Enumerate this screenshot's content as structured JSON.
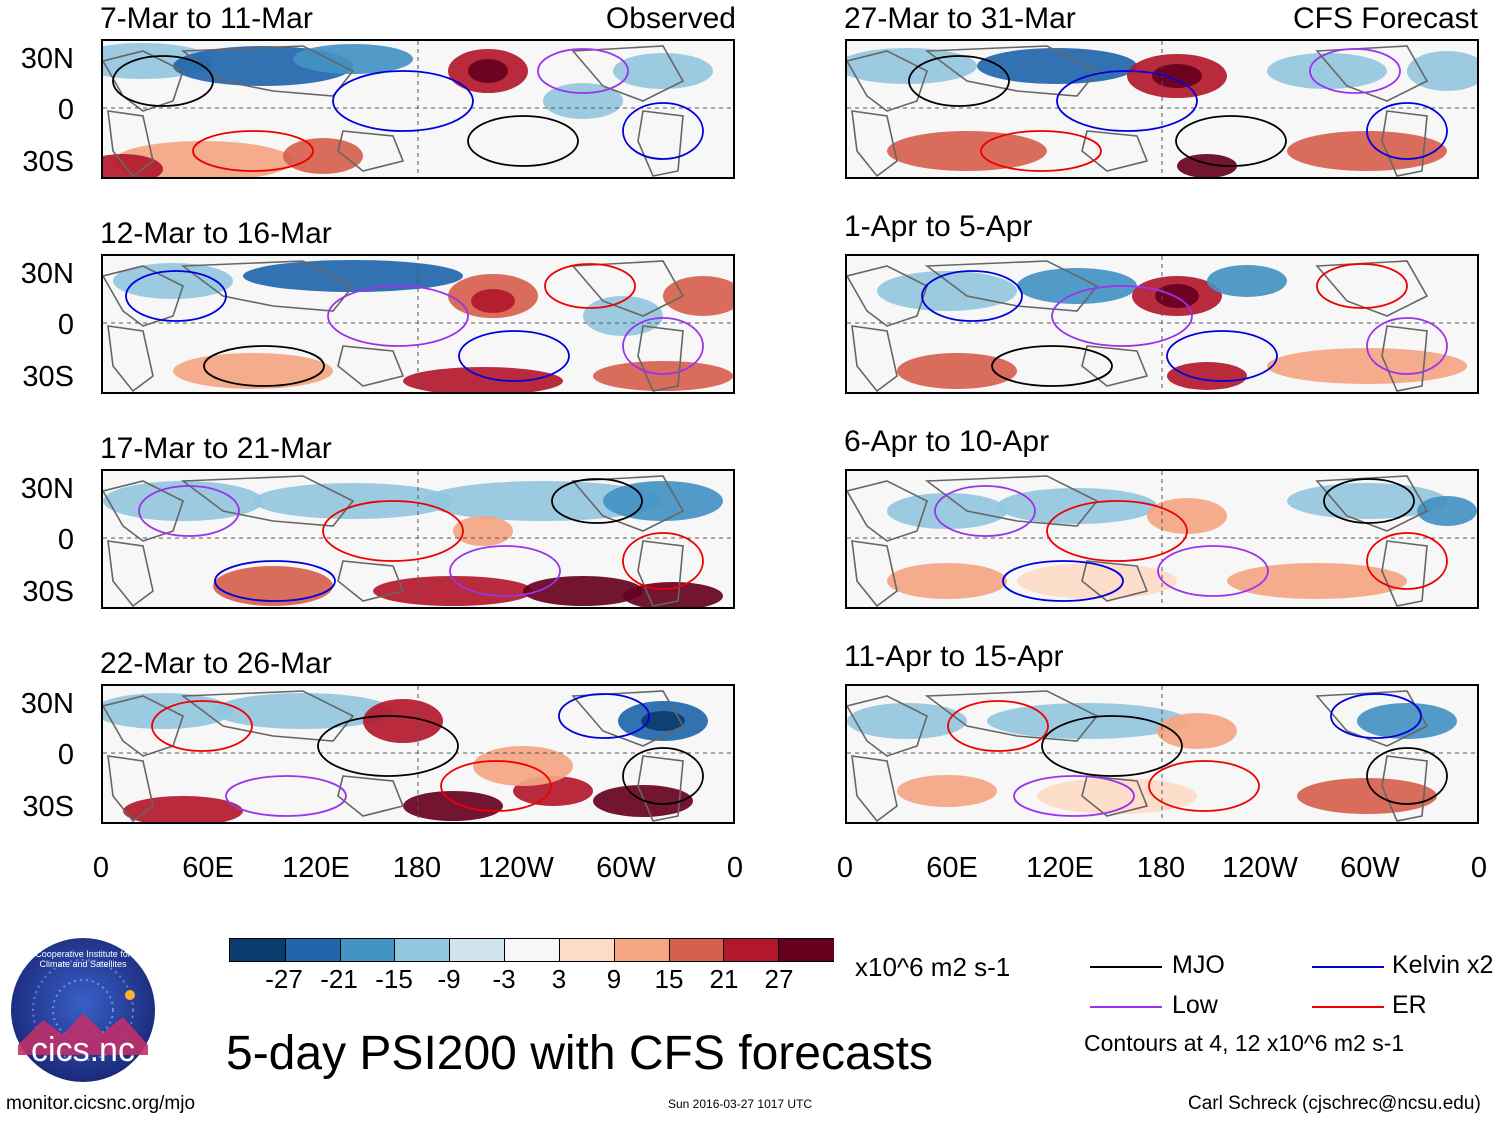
{
  "header": {
    "left_label": "Observed",
    "right_label": "CFS Forecast"
  },
  "panels_left": [
    {
      "title": "7-Mar to 11-Mar"
    },
    {
      "title": "12-Mar to 16-Mar"
    },
    {
      "title": "17-Mar to 21-Mar"
    },
    {
      "title": "22-Mar to 26-Mar"
    }
  ],
  "panels_right": [
    {
      "title": "27-Mar to 31-Mar"
    },
    {
      "title": "1-Apr to 5-Apr"
    },
    {
      "title": "6-Apr to 10-Apr"
    },
    {
      "title": "11-Apr to 15-Apr"
    }
  ],
  "lat_labels": [
    "30N",
    "0",
    "30S"
  ],
  "lon_labels": [
    "0",
    "60E",
    "120E",
    "180",
    "120W",
    "60W",
    "0"
  ],
  "colorbar": {
    "colors": [
      "#0a3d6e",
      "#2166ac",
      "#4393c3",
      "#92c5de",
      "#d1e5f0",
      "#f7f7f7",
      "#fddbc7",
      "#f4a582",
      "#d6604d",
      "#b2182b",
      "#67001f"
    ],
    "labels": [
      "-27",
      "-21",
      "-15",
      "-9",
      "-3",
      "3",
      "9",
      "15",
      "21",
      "27"
    ],
    "units": "x10^6 m2 s-1"
  },
  "legend": {
    "items": [
      {
        "label": "MJO",
        "color": "#000000"
      },
      {
        "label": "Kelvin x2",
        "color": "#0000dd"
      },
      {
        "label": "Low",
        "color": "#9933ee"
      },
      {
        "label": "ER",
        "color": "#ee0000"
      }
    ],
    "contours_note": "Contours at 4, 12 x10^6 m2 s-1"
  },
  "logo": {
    "text": "cics.nc",
    "ring_text": "Cooperative Institute for Climate and Satellites"
  },
  "main_title": "5-day PSI200 with CFS forecasts",
  "footer": {
    "url": "monitor.cicsnc.org/mjo",
    "timestamp": "Sun 2016-03-27 1017 UTC",
    "author": "Carl Schreck (cjschrec@ncsu.edu)"
  }
}
